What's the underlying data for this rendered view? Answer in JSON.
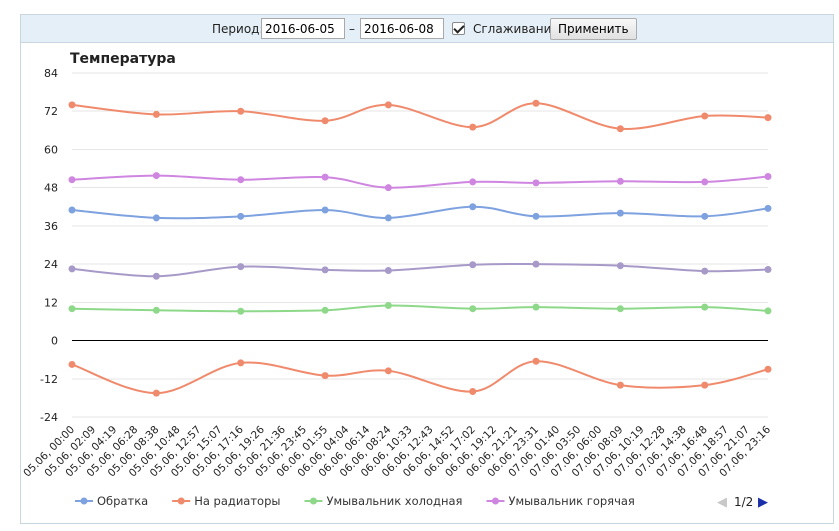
{
  "filter": {
    "period_label": "Период:",
    "date_from": "2016-06-05",
    "dash": "–",
    "date_to": "2016-06-08",
    "smoothing_checked": true,
    "smoothing_label": "Сглаживание",
    "apply_label": "Применить"
  },
  "legend_pager": {
    "prev_arrow": "◀",
    "page": "1/2",
    "next_arrow": "▶"
  },
  "colors": {
    "obratka": "#7ea2e0",
    "radiatory": "#f08a6c",
    "cold": "#8ed88a",
    "hot": "#cf86e0",
    "unnamed_purple": "#a89ac8",
    "unnamed_red": "#f08a6c",
    "zero_line": "#000000",
    "pager_active": "#1a2fa8",
    "pager_inactive": "#c8c8c8"
  },
  "chart_data": {
    "type": "line",
    "title": "Температура",
    "smoothed": true,
    "grid": true,
    "ylim": [
      -24,
      84
    ],
    "yticks": [
      84,
      72,
      60,
      48,
      36,
      24,
      12,
      0,
      -12,
      -24
    ],
    "x_ticks": [
      "05.06, 00:00",
      "05.06, 02:09",
      "05.06, 04:19",
      "05.06, 06:28",
      "05.06, 08:38",
      "05.06, 10:48",
      "05.06, 12:57",
      "05.06, 15:07",
      "05.06, 17:16",
      "05.06, 19:26",
      "05.06, 21:36",
      "05.06, 23:45",
      "06.06, 01:55",
      "06.06, 04:04",
      "06.06, 06:14",
      "06.06, 08:24",
      "06.06, 10:33",
      "06.06, 12:43",
      "06.06, 14:52",
      "06.06, 17:02",
      "06.06, 19:12",
      "06.06, 21:21",
      "06.06, 23:31",
      "07.06, 01:40",
      "07.06, 03:50",
      "07.06, 06:00",
      "07.06, 08:09",
      "07.06, 10:19",
      "07.06, 12:28",
      "07.06, 14:38",
      "07.06, 16:48",
      "07.06, 18:57",
      "07.06, 21:07",
      "07.06, 23:16"
    ],
    "x": [
      "05.06, 00:00",
      "05.06, 08:38",
      "05.06, 17:16",
      "06.06, 01:55",
      "06.06, 08:24",
      "06.06, 17:02",
      "06.06, 23:31",
      "07.06, 08:09",
      "07.06, 16:48",
      "07.06, 23:16"
    ],
    "legend_position": "bottom",
    "series": [
      {
        "name": "Обратка",
        "color_key": "obratka",
        "values": [
          41,
          38.5,
          39,
          41,
          38.5,
          42,
          39,
          40,
          39,
          41.5
        ]
      },
      {
        "name": "На радиаторы",
        "color_key": "radiatory",
        "values": [
          74,
          71,
          72,
          69,
          74,
          67,
          74.5,
          66.5,
          70.5,
          70
        ]
      },
      {
        "name": "Умывальник холодная",
        "color_key": "cold",
        "values": [
          10,
          9.5,
          9.2,
          9.5,
          11,
          10,
          10.5,
          10,
          10.5,
          9.3
        ]
      },
      {
        "name": "Умывальник горячая",
        "color_key": "hot",
        "values": [
          50.5,
          51.8,
          50.5,
          51.3,
          48,
          49.8,
          49.5,
          50,
          49.8,
          51.5
        ]
      },
      {
        "name": "",
        "color_key": "unnamed_purple",
        "values": [
          22.5,
          20.2,
          23.2,
          22.2,
          22,
          23.8,
          24,
          23.5,
          21.8,
          22.3
        ]
      },
      {
        "name": "",
        "color_key": "unnamed_red",
        "values": [
          -7.5,
          -16.5,
          -7,
          -11,
          -9.5,
          -16,
          -6.5,
          -14,
          -14,
          -9
        ]
      }
    ]
  }
}
